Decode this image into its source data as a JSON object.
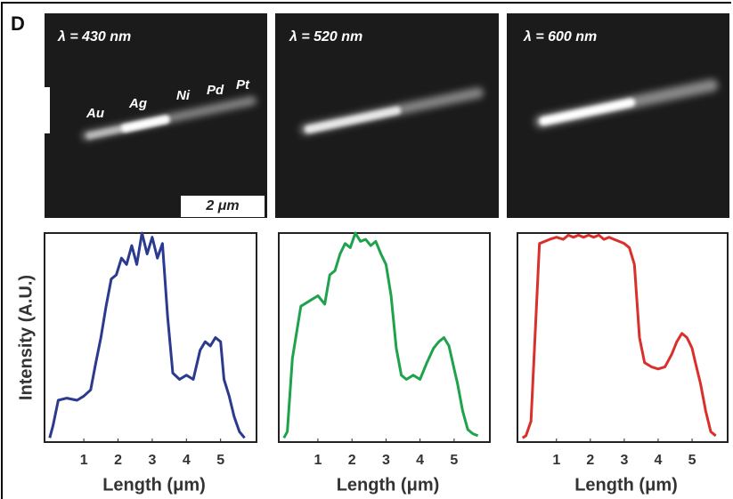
{
  "panel_label": "D",
  "images": [
    {
      "caption": "λ = 430 nm",
      "segments": [
        "Au",
        "Ag",
        "Ni",
        "Pd",
        "Pt"
      ],
      "scale_bar": "2 μm"
    },
    {
      "caption": "λ = 520 nm"
    },
    {
      "caption": "λ = 600 nm"
    }
  ],
  "chart_data": [
    {
      "type": "line",
      "ylabel": "Intensity (A.U.)",
      "xlabel": "Length (μm)",
      "xlim": [
        -0.15,
        6.05
      ],
      "ylim": [
        0,
        1
      ],
      "xticks": [
        1,
        2,
        3,
        4,
        5
      ],
      "series": [
        {
          "color": "#2b3a8f",
          "x": [
            0,
            0.1,
            0.25,
            0.5,
            0.8,
            1.0,
            1.2,
            1.35,
            1.5,
            1.65,
            1.8,
            1.95,
            2.1,
            2.25,
            2.4,
            2.55,
            2.7,
            2.85,
            3.0,
            3.15,
            3.3,
            3.45,
            3.6,
            3.8,
            4.0,
            4.2,
            4.4,
            4.55,
            4.7,
            4.85,
            5.0,
            5.1,
            5.25,
            5.4,
            5.55,
            5.7
          ],
          "values": [
            0.02,
            0.08,
            0.2,
            0.21,
            0.2,
            0.22,
            0.25,
            0.38,
            0.5,
            0.65,
            0.78,
            0.8,
            0.88,
            0.85,
            0.94,
            0.85,
            1.0,
            0.9,
            0.98,
            0.88,
            0.95,
            0.6,
            0.33,
            0.3,
            0.32,
            0.3,
            0.44,
            0.48,
            0.46,
            0.5,
            0.48,
            0.3,
            0.22,
            0.12,
            0.05,
            0.02
          ]
        }
      ]
    },
    {
      "type": "line",
      "xlabel": "Length (μm)",
      "xlim": [
        -0.15,
        6.05
      ],
      "ylim": [
        0,
        1
      ],
      "xticks": [
        1,
        2,
        3,
        4,
        5
      ],
      "series": [
        {
          "color": "#1ea34c",
          "x": [
            0,
            0.1,
            0.25,
            0.5,
            0.8,
            1.0,
            1.2,
            1.35,
            1.5,
            1.65,
            1.8,
            1.95,
            2.1,
            2.25,
            2.4,
            2.55,
            2.7,
            2.85,
            3.0,
            3.15,
            3.3,
            3.45,
            3.6,
            3.8,
            4.0,
            4.2,
            4.4,
            4.55,
            4.7,
            4.85,
            5.0,
            5.1,
            5.25,
            5.4,
            5.55,
            5.7
          ],
          "values": [
            0.02,
            0.05,
            0.4,
            0.65,
            0.68,
            0.7,
            0.66,
            0.8,
            0.82,
            0.9,
            0.95,
            0.93,
            1.0,
            0.96,
            0.97,
            0.94,
            0.96,
            0.9,
            0.85,
            0.7,
            0.45,
            0.32,
            0.3,
            0.32,
            0.3,
            0.38,
            0.45,
            0.48,
            0.5,
            0.46,
            0.35,
            0.28,
            0.15,
            0.06,
            0.04,
            0.03
          ]
        }
      ]
    },
    {
      "type": "line",
      "xlabel": "Length (μm)",
      "xlim": [
        -0.15,
        6.05
      ],
      "ylim": [
        0,
        1
      ],
      "xticks": [
        1,
        2,
        3,
        4,
        5
      ],
      "series": [
        {
          "color": "#d9302c",
          "x": [
            0,
            0.1,
            0.25,
            0.5,
            0.8,
            1.0,
            1.2,
            1.35,
            1.5,
            1.65,
            1.8,
            1.95,
            2.1,
            2.25,
            2.4,
            2.55,
            2.7,
            2.85,
            3.0,
            3.15,
            3.3,
            3.45,
            3.6,
            3.8,
            4.0,
            4.2,
            4.4,
            4.55,
            4.7,
            4.85,
            5.0,
            5.1,
            5.25,
            5.4,
            5.55,
            5.7
          ],
          "values": [
            0.02,
            0.03,
            0.1,
            0.95,
            0.97,
            0.98,
            0.97,
            0.99,
            0.98,
            0.99,
            0.98,
            0.99,
            0.98,
            0.99,
            0.97,
            0.98,
            0.97,
            0.96,
            0.95,
            0.93,
            0.85,
            0.5,
            0.38,
            0.36,
            0.35,
            0.36,
            0.42,
            0.48,
            0.52,
            0.5,
            0.45,
            0.38,
            0.28,
            0.15,
            0.05,
            0.03
          ]
        }
      ]
    }
  ]
}
